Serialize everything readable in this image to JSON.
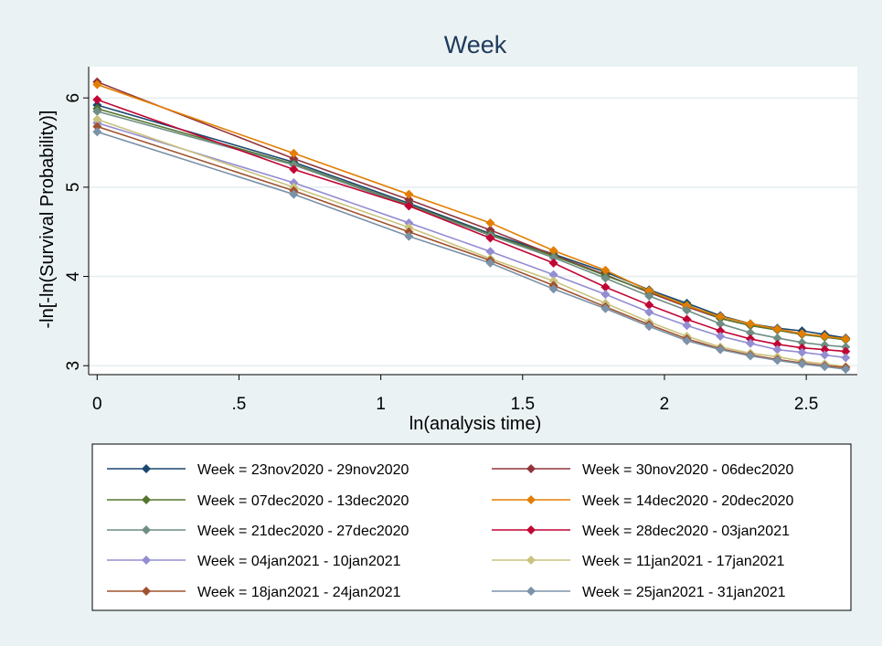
{
  "chart_data": {
    "type": "line",
    "title": "Week",
    "xlabel": "ln(analysis time)",
    "ylabel": "-ln[-ln(Survival Probability)]",
    "xlim": [
      -0.03,
      2.68
    ],
    "ylim": [
      2.9,
      6.35
    ],
    "xticks": [
      0,
      0.5,
      1,
      1.5,
      2,
      2.5
    ],
    "xtick_labels": [
      "0",
      ".5",
      "1",
      "1.5",
      "2",
      "2.5"
    ],
    "yticks": [
      3,
      4,
      5,
      6
    ],
    "ytick_labels": [
      "3",
      "4",
      "5",
      "6"
    ],
    "grid": true,
    "legend_position": "bottom",
    "x": [
      0,
      0.693,
      1.099,
      1.386,
      1.609,
      1.792,
      1.946,
      2.079,
      2.197,
      2.303,
      2.398,
      2.485,
      2.565,
      2.639
    ],
    "series": [
      {
        "name": "Week = 23nov2020 - 29nov2020",
        "color": "#1a476f",
        "values": [
          5.92,
          5.28,
          4.82,
          4.48,
          4.25,
          4.05,
          3.85,
          3.7,
          3.56,
          3.47,
          3.42,
          3.39,
          3.35,
          3.31
        ]
      },
      {
        "name": "Week = 30nov2020 - 06dec2020",
        "color": "#90353b",
        "values": [
          6.18,
          5.32,
          4.86,
          4.52,
          4.24,
          4.02,
          3.82,
          3.66,
          3.53,
          3.45,
          3.4,
          3.35,
          3.33,
          3.3
        ]
      },
      {
        "name": "Week = 07dec2020 - 13dec2020",
        "color": "#55752f",
        "values": [
          5.88,
          5.26,
          4.8,
          4.47,
          4.23,
          4.01,
          3.83,
          3.68,
          3.53,
          3.45,
          3.4,
          3.35,
          3.32,
          3.29
        ]
      },
      {
        "name": "Week = 14dec2020 - 20dec2020",
        "color": "#e37e00",
        "values": [
          6.15,
          5.38,
          4.92,
          4.6,
          4.29,
          4.07,
          3.84,
          3.67,
          3.55,
          3.47,
          3.41,
          3.36,
          3.33,
          3.3
        ]
      },
      {
        "name": "Week = 21dec2020 - 27dec2020",
        "color": "#6e8e84",
        "values": [
          5.85,
          5.25,
          4.79,
          4.46,
          4.21,
          3.98,
          3.78,
          3.62,
          3.47,
          3.37,
          3.31,
          3.26,
          3.23,
          3.21
        ]
      },
      {
        "name": "Week = 28dec2020 - 03jan2021",
        "color": "#c10534",
        "values": [
          5.98,
          5.2,
          4.79,
          4.43,
          4.15,
          3.88,
          3.68,
          3.52,
          3.39,
          3.3,
          3.24,
          3.2,
          3.18,
          3.16
        ]
      },
      {
        "name": "Week = 04jan2021 - 10jan2021",
        "color": "#938dd2",
        "values": [
          5.72,
          5.05,
          4.6,
          4.28,
          4.02,
          3.8,
          3.6,
          3.45,
          3.33,
          3.25,
          3.18,
          3.15,
          3.12,
          3.09
        ]
      },
      {
        "name": "Week = 11jan2021 - 17jan2021",
        "color": "#cac27e",
        "values": [
          5.76,
          5.0,
          4.55,
          4.2,
          3.95,
          3.7,
          3.49,
          3.33,
          3.21,
          3.14,
          3.1,
          3.05,
          3.02,
          2.99
        ]
      },
      {
        "name": "Week = 18jan2021 - 24jan2021",
        "color": "#a0522d",
        "values": [
          5.68,
          4.96,
          4.5,
          4.18,
          3.9,
          3.66,
          3.46,
          3.3,
          3.19,
          3.12,
          3.07,
          3.03,
          3.0,
          2.98
        ]
      },
      {
        "name": "Week = 25jan2021 - 31jan2021",
        "color": "#7b92a8",
        "values": [
          5.62,
          4.92,
          4.45,
          4.15,
          3.86,
          3.64,
          3.44,
          3.28,
          3.18,
          3.11,
          3.06,
          3.02,
          2.99,
          2.96
        ]
      }
    ]
  }
}
